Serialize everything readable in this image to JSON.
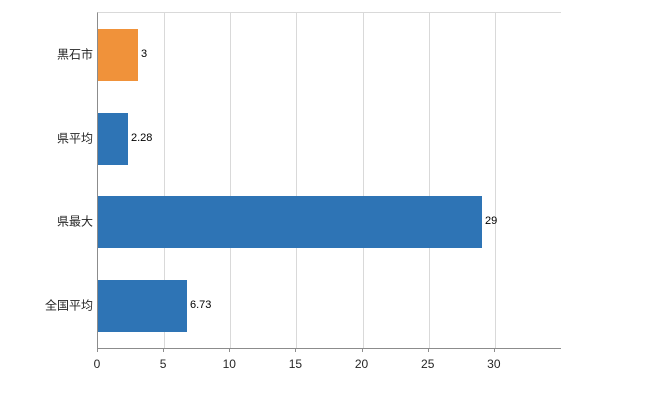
{
  "chart_data": {
    "type": "bar",
    "orientation": "horizontal",
    "title": "",
    "xlabel": "",
    "ylabel": "",
    "categories": [
      "黒石市",
      "県平均",
      "県最大",
      "全国平均"
    ],
    "values": [
      3,
      2.28,
      29,
      6.73
    ],
    "value_labels": [
      "3",
      "2.28",
      "29",
      "6.73"
    ],
    "bar_colors": [
      "#f0923a",
      "#2e74b5",
      "#2e74b5",
      "#2e74b5"
    ],
    "xlim": [
      0,
      35
    ],
    "xticks": [
      0,
      5,
      10,
      15,
      20,
      25,
      30
    ],
    "grid": true,
    "legend": "none"
  },
  "colors": {
    "background": "#ffffff",
    "axis": "#8c8c8c",
    "gridline": "#d9d9d9",
    "orange": "#f0923a",
    "blue": "#2e74b5"
  }
}
